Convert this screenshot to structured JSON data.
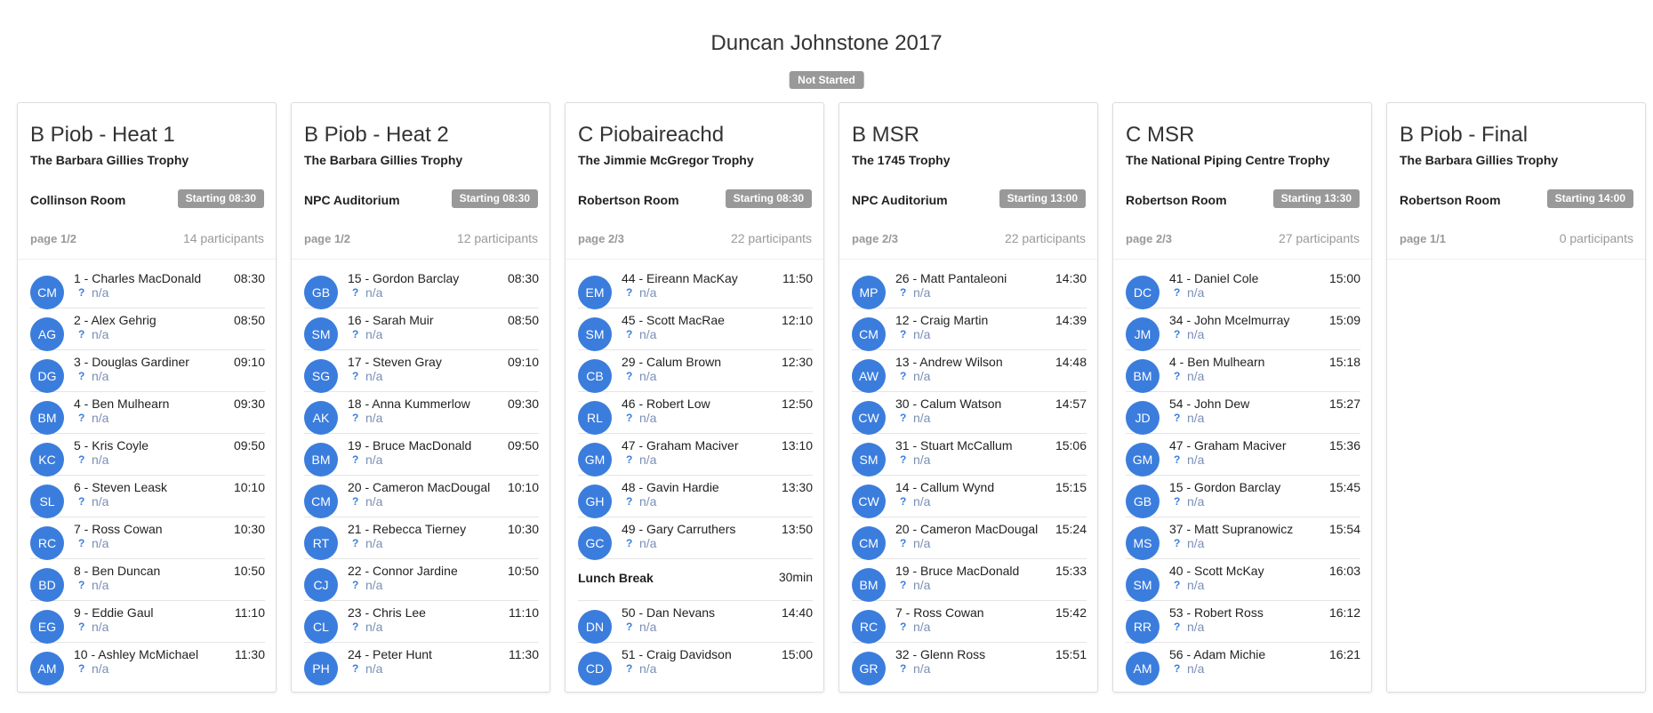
{
  "title": "Duncan Johnstone 2017",
  "status": "Not Started",
  "na_label": "n/a",
  "unknown_icon": "?",
  "columns": [
    {
      "title": "B Piob - Heat 1",
      "subtitle": "The Barbara Gillies Trophy",
      "room": "Collinson Room",
      "start": "Starting 08:30",
      "page": "page 1/2",
      "count": "14 participants",
      "items": [
        {
          "type": "p",
          "initials": "CM",
          "name": "1 - Charles MacDonald",
          "time": "08:30"
        },
        {
          "type": "p",
          "initials": "AG",
          "name": "2 - Alex Gehrig",
          "time": "08:50"
        },
        {
          "type": "p",
          "initials": "DG",
          "name": "3 - Douglas Gardiner",
          "time": "09:10"
        },
        {
          "type": "p",
          "initials": "BM",
          "name": "4 - Ben Mulhearn",
          "time": "09:30"
        },
        {
          "type": "p",
          "initials": "KC",
          "name": "5 - Kris Coyle",
          "time": "09:50"
        },
        {
          "type": "p",
          "initials": "SL",
          "name": "6 - Steven Leask",
          "time": "10:10"
        },
        {
          "type": "p",
          "initials": "RC",
          "name": "7 - Ross Cowan",
          "time": "10:30"
        },
        {
          "type": "p",
          "initials": "BD",
          "name": "8 - Ben Duncan",
          "time": "10:50"
        },
        {
          "type": "p",
          "initials": "EG",
          "name": "9 - Eddie Gaul",
          "time": "11:10"
        },
        {
          "type": "p",
          "initials": "AM",
          "name": "10 - Ashley McMichael",
          "time": "11:30"
        }
      ]
    },
    {
      "title": "B Piob - Heat 2",
      "subtitle": "The Barbara Gillies Trophy",
      "room": "NPC Auditorium",
      "start": "Starting 08:30",
      "page": "page 1/2",
      "count": "12 participants",
      "items": [
        {
          "type": "p",
          "initials": "GB",
          "name": "15 - Gordon Barclay",
          "time": "08:30"
        },
        {
          "type": "p",
          "initials": "SM",
          "name": "16 - Sarah Muir",
          "time": "08:50"
        },
        {
          "type": "p",
          "initials": "SG",
          "name": "17 - Steven Gray",
          "time": "09:10"
        },
        {
          "type": "p",
          "initials": "AK",
          "name": "18 - Anna Kummerlow",
          "time": "09:30"
        },
        {
          "type": "p",
          "initials": "BM",
          "name": "19 - Bruce MacDonald",
          "time": "09:50"
        },
        {
          "type": "p",
          "initials": "CM",
          "name": "20 - Cameron MacDougall",
          "time": "10:10"
        },
        {
          "type": "p",
          "initials": "RT",
          "name": "21 - Rebecca Tierney",
          "time": "10:30"
        },
        {
          "type": "p",
          "initials": "CJ",
          "name": "22 - Connor Jardine",
          "time": "10:50"
        },
        {
          "type": "p",
          "initials": "CL",
          "name": "23 - Chris Lee",
          "time": "11:10"
        },
        {
          "type": "p",
          "initials": "PH",
          "name": "24 - Peter Hunt",
          "time": "11:30"
        }
      ]
    },
    {
      "title": "C Piobaireachd",
      "subtitle": "The Jimmie McGregor Trophy",
      "room": "Robertson Room",
      "start": "Starting 08:30",
      "page": "page 2/3",
      "count": "22 participants",
      "items": [
        {
          "type": "p",
          "initials": "EM",
          "name": "44 - Eireann MacKay",
          "time": "11:50"
        },
        {
          "type": "p",
          "initials": "SM",
          "name": "45 - Scott MacRae",
          "time": "12:10"
        },
        {
          "type": "p",
          "initials": "CB",
          "name": "29 - Calum Brown",
          "time": "12:30"
        },
        {
          "type": "p",
          "initials": "RL",
          "name": "46 - Robert Low",
          "time": "12:50"
        },
        {
          "type": "p",
          "initials": "GM",
          "name": "47 - Graham Maciver",
          "time": "13:10"
        },
        {
          "type": "p",
          "initials": "GH",
          "name": "48 - Gavin Hardie",
          "time": "13:30"
        },
        {
          "type": "p",
          "initials": "GC",
          "name": "49 - Gary Carruthers",
          "time": "13:50"
        },
        {
          "type": "break",
          "label": "Lunch Break",
          "duration": "30min"
        },
        {
          "type": "p",
          "initials": "DN",
          "name": "50 - Dan Nevans",
          "time": "14:40"
        },
        {
          "type": "p",
          "initials": "CD",
          "name": "51 - Craig Davidson",
          "time": "15:00"
        }
      ]
    },
    {
      "title": "B MSR",
      "subtitle": "The 1745 Trophy",
      "room": "NPC Auditorium",
      "start": "Starting 13:00",
      "page": "page 2/3",
      "count": "22 participants",
      "items": [
        {
          "type": "p",
          "initials": "MP",
          "name": "26 - Matt Pantaleoni",
          "time": "14:30"
        },
        {
          "type": "p",
          "initials": "CM",
          "name": "12 - Craig Martin",
          "time": "14:39"
        },
        {
          "type": "p",
          "initials": "AW",
          "name": "13 - Andrew Wilson",
          "time": "14:48"
        },
        {
          "type": "p",
          "initials": "CW",
          "name": "30 - Calum Watson",
          "time": "14:57"
        },
        {
          "type": "p",
          "initials": "SM",
          "name": "31 - Stuart McCallum",
          "time": "15:06"
        },
        {
          "type": "p",
          "initials": "CW",
          "name": "14 - Callum Wynd",
          "time": "15:15"
        },
        {
          "type": "p",
          "initials": "CM",
          "name": "20 - Cameron MacDougall",
          "time": "15:24"
        },
        {
          "type": "p",
          "initials": "BM",
          "name": "19 - Bruce MacDonald",
          "time": "15:33"
        },
        {
          "type": "p",
          "initials": "RC",
          "name": "7 - Ross Cowan",
          "time": "15:42"
        },
        {
          "type": "p",
          "initials": "GR",
          "name": "32 - Glenn Ross",
          "time": "15:51"
        }
      ]
    },
    {
      "title": "C MSR",
      "subtitle": "The National Piping Centre Trophy",
      "room": "Robertson Room",
      "start": "Starting 13:30",
      "page": "page 2/3",
      "count": "27 participants",
      "items": [
        {
          "type": "p",
          "initials": "DC",
          "name": "41 - Daniel Cole",
          "time": "15:00"
        },
        {
          "type": "p",
          "initials": "JM",
          "name": "34 - John Mcelmurray",
          "time": "15:09"
        },
        {
          "type": "p",
          "initials": "BM",
          "name": "4 - Ben Mulhearn",
          "time": "15:18"
        },
        {
          "type": "p",
          "initials": "JD",
          "name": "54 - John Dew",
          "time": "15:27"
        },
        {
          "type": "p",
          "initials": "GM",
          "name": "47 - Graham Maciver",
          "time": "15:36"
        },
        {
          "type": "p",
          "initials": "GB",
          "name": "15 - Gordon Barclay",
          "time": "15:45"
        },
        {
          "type": "p",
          "initials": "MS",
          "name": "37 - Matt Supranowicz",
          "time": "15:54"
        },
        {
          "type": "p",
          "initials": "SM",
          "name": "40 - Scott McKay",
          "time": "16:03"
        },
        {
          "type": "p",
          "initials": "RR",
          "name": "53 - Robert Ross",
          "time": "16:12"
        },
        {
          "type": "p",
          "initials": "AM",
          "name": "56 - Adam Michie",
          "time": "16:21"
        }
      ]
    },
    {
      "title": "B Piob - Final",
      "subtitle": "The Barbara Gillies Trophy",
      "room": "Robertson Room",
      "start": "Starting 14:00",
      "page": "page 1/1",
      "count": "0 participants",
      "items": []
    }
  ]
}
